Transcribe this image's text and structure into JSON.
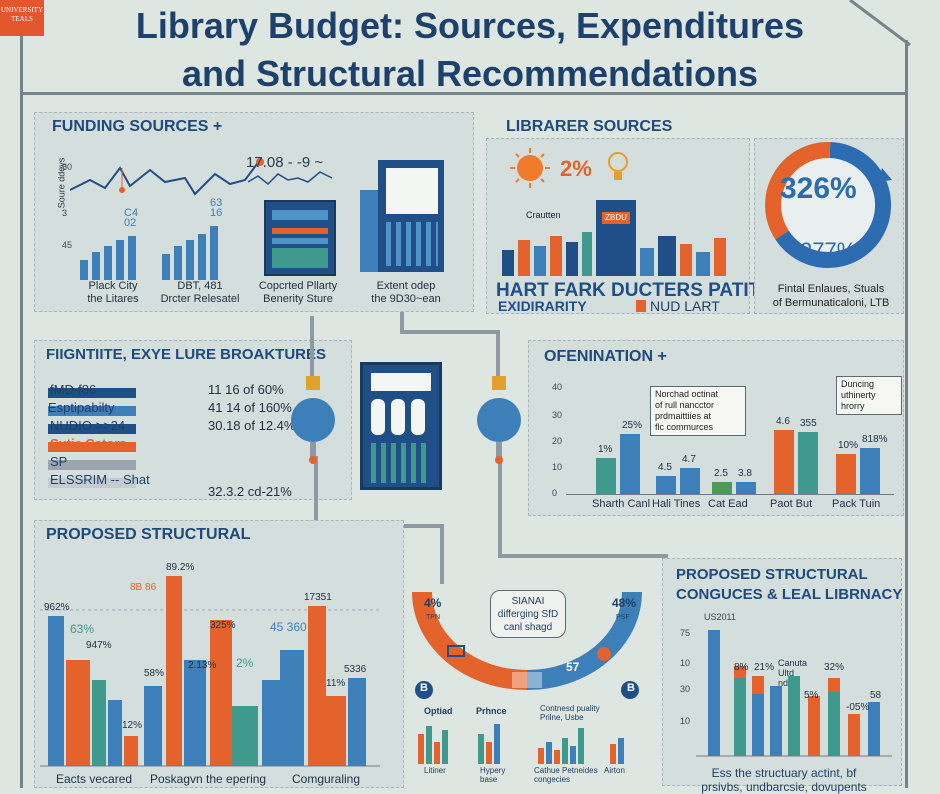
{
  "logo_text": "UNIVERSITY TEALS",
  "title_line1": "Library Budget:  Sources, Expenditures",
  "title_line2": "and Structural Recommendations",
  "funding": {
    "title": "FUNDING SOURCES +",
    "y_axis_label": "Soure ddeys",
    "axis_top": "60",
    "axis_mid": "3",
    "axis_bot": "45",
    "mini_label_1": "C4",
    "mini_label_1b": "02",
    "mini_label_2": "63",
    "mini_label_2b": "16",
    "top_value": "17.08 - -9 ~",
    "caption1": "Plack City\nthe Litares",
    "caption2": "DBT, 481\nDrcter Relesatel",
    "caption3": "Copcrted Pllarty\nBenerity Sture",
    "caption4": "Extent odep\nthe 9D30~ean"
  },
  "library": {
    "title": "LIBRARER SOURCES",
    "percent": "2%",
    "bldg_label": "Crautten",
    "bldg_sign": "ZBDU",
    "caption": "HART FARK DUCTERS PATITE",
    "legend_left": "EXIDIRARITY",
    "legend_right": "NUD LART"
  },
  "donut": {
    "big_value": "326%",
    "small_value": "277%",
    "caption_line1": "Fintal Enlaues, Stuals",
    "caption_line2": "of Bermunaticaloni, LTB"
  },
  "expenditure": {
    "title": "FIIGNTIITE, EXYE LURE BROAKTURES",
    "rows": [
      {
        "label": "fMD-f86",
        "value": "11 16  of  60%",
        "color": "#1f4f86"
      },
      {
        "label": "Esptipabilty",
        "value": "41 14  of  160%",
        "color": "#3d7fb8"
      },
      {
        "label": "NUDIO >>24",
        "value": "30.18  of  12.4%",
        "color": "#1f4f86"
      },
      {
        "label": "Sutje Cators",
        "value": "",
        "color": "#e4622c"
      },
      {
        "label": "SP",
        "value": "",
        "color": "#9aa5ad"
      },
      {
        "label": "ELSSRIM -- Shat",
        "value": "32.3.2  cd-21%",
        "color": "#c5ccd1"
      }
    ]
  },
  "operation": {
    "title": "OFENINATION  +",
    "y_top": "40",
    "y_vals": [
      "30",
      "20",
      "10",
      "0"
    ],
    "note1": "Norchad octinat\nof rull nancctor\nprdmaittiies at\nflc commurces",
    "note2": "Duncing\nuthinerty\nhrorry",
    "groups": [
      {
        "label": "Sharth Canl",
        "a": "1%",
        "b": "25%"
      },
      {
        "label": "Hali Tines",
        "a": "4.5",
        "b": "4.7"
      },
      {
        "label": "Cat Ead",
        "a": "2.5",
        "b": "3.8"
      },
      {
        "label": "Paot But",
        "a": "4.6",
        "b": "355"
      },
      {
        "label": "Pack Tuin",
        "a": "10%",
        "b": "818%"
      }
    ]
  },
  "proposed": {
    "title": "PROPOSED STRUCTURAL",
    "labels": [
      "962%",
      "63%",
      "947%",
      "8B 86",
      "89.2%",
      "58%",
      "12%",
      "2.13%",
      "325%",
      "2%",
      "45 360",
      "17351",
      "5336",
      "11%"
    ],
    "bottom1": "Eacts vecared",
    "bottom2": "Poskagvn the epering",
    "bottom3": "Comguraling"
  },
  "center": {
    "box_text": "SIANAI\ndifferging SfD\ncanl shagd",
    "left_pct": "4%",
    "left_sub": "TPN",
    "right_pct": "48%",
    "right_sub": "PSF",
    "badge_left": "B",
    "badge_right": "B",
    "mid_value": "57",
    "label_a": "Optiad",
    "label_b": "Prhnce",
    "label_c": "Contnesd puality\nPrilne, Usbe",
    "foot_a": "Litiner",
    "foot_b": "Hypery\nbase",
    "foot_c": "Cathue Petneides\ncongecies",
    "foot_d": "Airton"
  },
  "recs": {
    "title_line1": "PROPOSED STRUCTURAL",
    "title_line2": "CONGUCES & LEAL LIBRNACY",
    "y_labels": [
      "75",
      "10",
      "30",
      "10"
    ],
    "y_top": "US2011",
    "bar_labels": [
      "8%",
      "21%",
      "Canuta\nUltd\nnd",
      "32%",
      "5%",
      "-05%",
      "58"
    ],
    "caption1": "Ess the structuary actint, bf",
    "caption2": "prsivbs, undbarcsie, dovupents"
  }
}
